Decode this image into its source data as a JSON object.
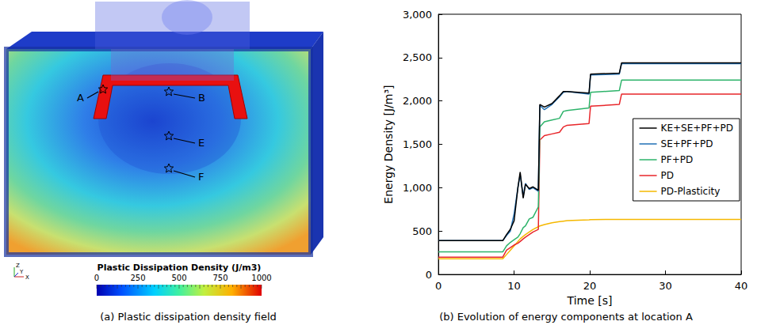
{
  "chart_data": {
    "type": "line",
    "caption": "(b) Evolution of energy components at location A",
    "x_label": "Time [s]",
    "y_label": "Energy Density [J/m³]",
    "xlim": [
      0,
      40
    ],
    "xticks": [
      0,
      10,
      20,
      30,
      40
    ],
    "ylim": [
      0,
      3000
    ],
    "yticks": [
      0,
      500,
      1000,
      1500,
      2000,
      2500,
      3000
    ],
    "grid": false,
    "legend": "right",
    "x": [
      0,
      8.5,
      9,
      9.5,
      10,
      10.5,
      10.8,
      11.2,
      11.5,
      12,
      12.5,
      13.2,
      13.4,
      14,
      15,
      16,
      16.5,
      17,
      19.9,
      20.1,
      23.9,
      24.2,
      30,
      40
    ],
    "series": [
      {
        "name": "KE+SE+PF+PD",
        "color": "#000000",
        "values": [
          390,
          390,
          460,
          520,
          620,
          1000,
          1180,
          880,
          1040,
          990,
          1010,
          970,
          1960,
          1930,
          1970,
          2060,
          2110,
          2110,
          2090,
          2310,
          2320,
          2440,
          2440,
          2440
        ]
      },
      {
        "name": "SE+PF+PD",
        "color": "#1f6fb4",
        "values": [
          390,
          390,
          450,
          500,
          700,
          1000,
          1150,
          900,
          1050,
          980,
          1000,
          960,
          1950,
          1900,
          1960,
          2050,
          2100,
          2110,
          2080,
          2300,
          2310,
          2430,
          2430,
          2430
        ]
      },
      {
        "name": "PF+PD",
        "color": "#2db36a",
        "values": [
          260,
          260,
          330,
          370,
          400,
          430,
          470,
          540,
          560,
          640,
          660,
          780,
          1700,
          1760,
          1780,
          1800,
          1880,
          1890,
          1920,
          2100,
          2120,
          2240,
          2240,
          2240
        ]
      },
      {
        "name": "PD",
        "color": "#e8262a",
        "values": [
          200,
          200,
          280,
          310,
          340,
          360,
          380,
          410,
          430,
          460,
          490,
          520,
          1550,
          1600,
          1620,
          1640,
          1700,
          1720,
          1740,
          1940,
          1960,
          2080,
          2080,
          2080
        ]
      },
      {
        "name": "PD-Plasticity",
        "color": "#f5b800",
        "values": [
          180,
          180,
          230,
          280,
          330,
          380,
          410,
          440,
          460,
          490,
          520,
          550,
          560,
          575,
          595,
          610,
          615,
          620,
          630,
          632,
          635,
          635,
          635,
          635
        ]
      }
    ]
  },
  "panel_a": {
    "caption": "(a) Plastic dissipation density field",
    "points": [
      "A",
      "B",
      "E",
      "F"
    ],
    "axes_triad": [
      "Z",
      "Y",
      "X"
    ],
    "colorbar": {
      "title": "Plastic Dissipation Density (J/m3)",
      "range": [
        0,
        1000
      ],
      "ticks": [
        0,
        250,
        500,
        750,
        1000
      ]
    }
  }
}
